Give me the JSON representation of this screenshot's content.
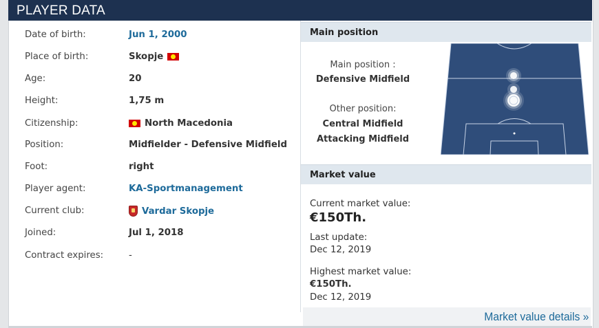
{
  "header": {
    "title": "PLAYER DATA"
  },
  "player": [
    {
      "label": "Date of birth:",
      "value": "Jun 1, 2000",
      "link": true
    },
    {
      "label": "Place of birth:",
      "value": "Skopje",
      "flag": true
    },
    {
      "label": "Age:",
      "value": "20"
    },
    {
      "label": "Height:",
      "value": "1,75 m"
    },
    {
      "label": "Citizenship:",
      "value": "North Macedonia",
      "flag_before": true
    },
    {
      "label": "Position:",
      "value": "Midfielder - Defensive Midfield"
    },
    {
      "label": "Foot:",
      "value": "right"
    },
    {
      "label": "Player agent:",
      "value": "KA-Sportmanagement",
      "link": true
    },
    {
      "label": "Current club:",
      "value": "Vardar Skopje",
      "link": true,
      "crest": true
    },
    {
      "label": "Joined:",
      "value": "Jul 1, 2018"
    },
    {
      "label": "Contract expires:",
      "value": "-"
    }
  ],
  "main_position": {
    "title": "Main position",
    "main_label": "Main position :",
    "main_value": "Defensive Midfield",
    "other_label": "Other position:",
    "other_values": [
      "Central Midfield",
      "Attacking Midfield"
    ]
  },
  "market_value": {
    "title": "Market value",
    "current_label": "Current market value:",
    "current_value": "€150Th.",
    "last_update_label": "Last update:",
    "last_update_value": "Dec 12, 2019",
    "highest_label": "Highest market value:",
    "highest_value": "€150Th.",
    "highest_date": "Dec 12, 2019",
    "details_link": "Market value details »"
  },
  "colors": {
    "header_bg": "#1d3150",
    "link": "#1d6a9a",
    "pitch": "#2f4d7a",
    "subheader_bg": "#dfe7ee"
  },
  "icons": [
    "macedonia-flag-icon",
    "club-crest-icon"
  ]
}
